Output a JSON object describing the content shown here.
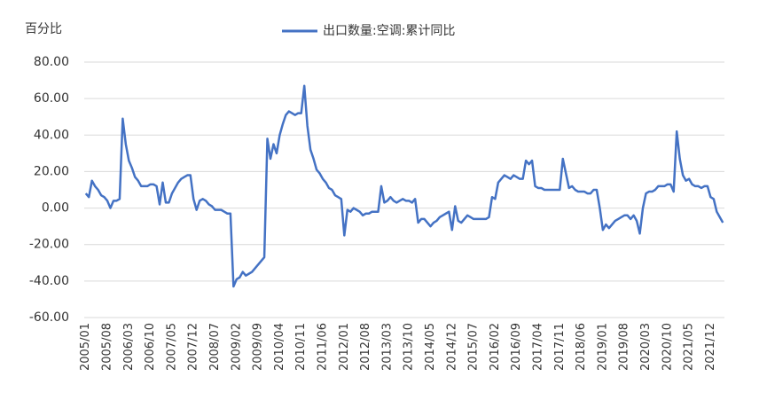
{
  "chart_data": {
    "type": "line",
    "y_label": "百分比",
    "categories": [
      "2005/01",
      null,
      null,
      null,
      null,
      null,
      null,
      "2005/08",
      null,
      null,
      null,
      null,
      null,
      null,
      "2006/03",
      null,
      null,
      null,
      null,
      null,
      null,
      "2006/10",
      null,
      null,
      null,
      null,
      null,
      null,
      "2007/05",
      null,
      null,
      null,
      null,
      null,
      null,
      "2007/12",
      null,
      null,
      null,
      null,
      null,
      null,
      "2008/07",
      null,
      null,
      null,
      null,
      null,
      null,
      "2009/02",
      null,
      null,
      null,
      null,
      null,
      null,
      "2009/09",
      null,
      null,
      null,
      null,
      null,
      null,
      "2010/04",
      null,
      null,
      null,
      null,
      null,
      null,
      "2010/11",
      null,
      null,
      null,
      null,
      null,
      null,
      "2011/06",
      null,
      null,
      null,
      null,
      null,
      null,
      "2012/01",
      null,
      null,
      null,
      null,
      null,
      null,
      "2012/08",
      null,
      null,
      null,
      null,
      null,
      null,
      "2013/03",
      null,
      null,
      null,
      null,
      null,
      null,
      "2013/10",
      null,
      null,
      null,
      null,
      null,
      null,
      "2014/05",
      null,
      null,
      null,
      null,
      null,
      null,
      "2014/12",
      null,
      null,
      null,
      null,
      null,
      null,
      "2015/07",
      null,
      null,
      null,
      null,
      null,
      null,
      "2016/02",
      null,
      null,
      null,
      null,
      null,
      null,
      "2016/09",
      null,
      null,
      null,
      null,
      null,
      null,
      "2017/04",
      null,
      null,
      null,
      null,
      null,
      null,
      "2017/11",
      null,
      null,
      null,
      null,
      null,
      null,
      "2018/06",
      null,
      null,
      null,
      null,
      null,
      null,
      "2019/01",
      null,
      null,
      null,
      null,
      null,
      null,
      "2019/08",
      null,
      null,
      null,
      null,
      null,
      null,
      "2020/03",
      null,
      null,
      null,
      null,
      null,
      null,
      "2020/10",
      null,
      null,
      null,
      null,
      null,
      null,
      "2021/05",
      null,
      null,
      null,
      null,
      null,
      null,
      "2021/12",
      null,
      null,
      null,
      null
    ],
    "series": [
      {
        "name": "出口数量:空调:累计同比",
        "color": "#4472c4",
        "values": [
          8,
          6,
          15,
          12,
          10,
          7,
          6,
          4,
          0,
          4,
          4,
          5,
          49,
          35,
          26,
          22,
          17,
          15,
          12,
          12,
          12,
          13,
          13,
          12,
          2,
          14,
          3,
          3,
          8,
          11,
          14,
          16,
          17,
          18,
          18,
          5,
          -1,
          4,
          5,
          4,
          2,
          1,
          -1,
          -1,
          -1,
          -2,
          -3,
          -3,
          -43,
          -39,
          -38,
          -35,
          -37,
          -36,
          -35,
          -33,
          -31,
          -29,
          -27,
          38,
          27,
          35,
          30,
          40,
          46,
          51,
          53,
          52,
          51,
          52,
          52,
          67,
          45,
          32,
          27,
          21,
          19,
          16,
          14,
          11,
          10,
          7,
          6,
          5,
          -15,
          -1,
          -2,
          0,
          -1,
          -2,
          -4,
          -3,
          -3,
          -2,
          -2,
          -2,
          12,
          3,
          4,
          6,
          4,
          3,
          4,
          5,
          4,
          4,
          3,
          5,
          -8,
          -6,
          -6,
          -8,
          -10,
          -8,
          -7,
          -5,
          -4,
          -3,
          -2,
          -12,
          1,
          -7,
          -8,
          -6,
          -4,
          -5,
          -6,
          -6,
          -6,
          -6,
          -6,
          -5,
          6,
          5,
          14,
          16,
          18,
          17,
          16,
          18,
          17,
          16,
          16,
          26,
          24,
          26,
          12,
          11,
          11,
          10,
          10,
          10,
          10,
          10,
          10,
          27,
          19,
          11,
          12,
          10,
          9,
          9,
          9,
          8,
          8,
          10,
          10,
          0,
          -12,
          -9,
          -11,
          -9,
          -7,
          -6,
          -5,
          -4,
          -4,
          -6,
          -4,
          -7,
          -14,
          0,
          8,
          9,
          9,
          10,
          12,
          12,
          12,
          13,
          13,
          9,
          42,
          27,
          18,
          15,
          16,
          13,
          12,
          12,
          11,
          12,
          12,
          6,
          5,
          -2,
          -5,
          -8
        ]
      }
    ],
    "ylim": [
      -60,
      80
    ],
    "yticks": [
      {
        "value": -60,
        "label": "-60.00"
      },
      {
        "value": -40,
        "label": "-40.00"
      },
      {
        "value": -20,
        "label": "-20.00"
      },
      {
        "value": 0,
        "label": "0.00"
      },
      {
        "value": 20,
        "label": "20.00"
      },
      {
        "value": 40,
        "label": "40.00"
      },
      {
        "value": 60,
        "label": "60.00"
      },
      {
        "value": 80,
        "label": "80.00"
      }
    ],
    "grid": true
  }
}
